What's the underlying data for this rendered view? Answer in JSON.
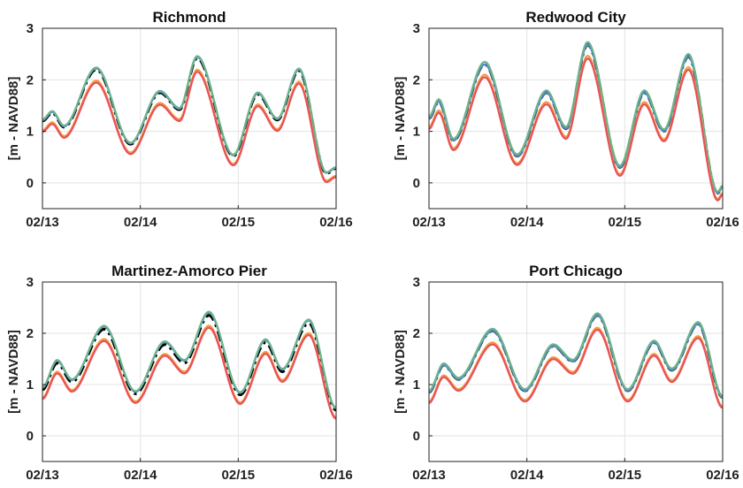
{
  "figure": {
    "background": "#ffffff",
    "x_ticks": [
      "02/13",
      "02/14",
      "02/15",
      "02/16"
    ],
    "y_ticks": [
      0,
      1,
      2,
      3
    ],
    "ylim": [
      -0.5,
      3
    ],
    "series_colors": {
      "black_dashdot": "#000000",
      "blue": "#4f86c6",
      "green": "#6db38a",
      "orange": "#f29a3c",
      "red": "#e8505b"
    }
  },
  "chart_data": [
    {
      "type": "line",
      "title": "Richmond",
      "ylabel": "[m - NAVD88]",
      "xlim": [
        0,
        3
      ],
      "ylim": [
        -0.5,
        3
      ],
      "x_ticks": [
        "02/13",
        "02/14",
        "02/15",
        "02/16"
      ],
      "grid": true,
      "tide": {
        "offsetHigh": 0.0,
        "offsetLow": 0.0,
        "pts": [
          [
            0,
            1.2
          ],
          [
            0.1,
            1.36
          ],
          [
            0.22,
            1.08
          ],
          [
            0.55,
            2.2
          ],
          [
            0.9,
            0.75
          ],
          [
            1.2,
            1.75
          ],
          [
            1.4,
            1.42
          ],
          [
            1.58,
            2.42
          ],
          [
            1.95,
            0.52
          ],
          [
            2.2,
            1.72
          ],
          [
            2.4,
            1.22
          ],
          [
            2.62,
            2.18
          ],
          [
            2.9,
            0.18
          ],
          [
            3,
            0.28
          ]
        ]
      },
      "series": [
        {
          "color": "#000000",
          "values_shift": 0.0,
          "style": "dashdot"
        },
        {
          "color": "#4f86c6",
          "values_shift": 0.02
        },
        {
          "color": "#6db38a",
          "values_shift": 0.04
        },
        {
          "color": "#f29a3c",
          "values_shift": -0.22
        },
        {
          "color": "#e8505b",
          "values_shift": -0.26
        }
      ]
    },
    {
      "type": "line",
      "title": "Redwood City",
      "ylabel": "",
      "xlim": [
        0,
        3
      ],
      "ylim": [
        -0.5,
        3
      ],
      "x_ticks": [
        "02/13",
        "02/14",
        "02/15",
        "02/16"
      ],
      "grid": true,
      "tide": {
        "pts": [
          [
            0,
            1.25
          ],
          [
            0.1,
            1.58
          ],
          [
            0.25,
            0.82
          ],
          [
            0.57,
            2.3
          ],
          [
            0.9,
            0.52
          ],
          [
            1.2,
            1.75
          ],
          [
            1.4,
            1.05
          ],
          [
            1.62,
            2.68
          ],
          [
            1.95,
            0.3
          ],
          [
            2.2,
            1.75
          ],
          [
            2.4,
            1.0
          ],
          [
            2.65,
            2.45
          ],
          [
            2.95,
            -0.2
          ],
          [
            3,
            -0.08
          ]
        ]
      },
      "series": [
        {
          "color": "#000000",
          "values_shift": 0.0,
          "style": "dashdot"
        },
        {
          "color": "#4f86c6",
          "values_shift": 0.0
        },
        {
          "color": "#6db38a",
          "values_shift": 0.05
        },
        {
          "color": "#f29a3c",
          "values_shift": -0.2
        },
        {
          "color": "#e8505b",
          "values_shift": -0.25
        }
      ]
    },
    {
      "type": "line",
      "title": "Martinez-Amorco Pier",
      "ylabel": "[m - NAVD88]",
      "xlim": [
        0,
        3
      ],
      "ylim": [
        -0.5,
        3
      ],
      "x_ticks": [
        "02/13",
        "02/14",
        "02/15",
        "02/16"
      ],
      "grid": true,
      "tide": {
        "pts": [
          [
            0,
            0.9
          ],
          [
            0.15,
            1.42
          ],
          [
            0.3,
            1.05
          ],
          [
            0.63,
            2.08
          ],
          [
            0.95,
            0.82
          ],
          [
            1.25,
            1.78
          ],
          [
            1.45,
            1.42
          ],
          [
            1.7,
            2.35
          ],
          [
            2.02,
            0.8
          ],
          [
            2.28,
            1.82
          ],
          [
            2.45,
            1.25
          ],
          [
            2.72,
            2.2
          ],
          [
            3,
            0.5
          ]
        ]
      },
      "series": [
        {
          "color": "#000000",
          "values_shift": 0.0,
          "style": "dashdot"
        },
        {
          "color": "#4f86c6",
          "values_shift": 0.05
        },
        {
          "color": "#6db38a",
          "values_shift": 0.07
        },
        {
          "color": "#f29a3c",
          "values_shift": -0.2
        },
        {
          "color": "#e8505b",
          "values_shift": -0.24
        }
      ]
    },
    {
      "type": "line",
      "title": "Port Chicago",
      "ylabel": "[m - NAVD88]",
      "xlim": [
        0,
        3
      ],
      "ylim": [
        -0.5,
        3
      ],
      "x_ticks": [
        "02/13",
        "02/14",
        "02/15",
        "02/16"
      ],
      "grid": true,
      "tide": {
        "pts": [
          [
            0,
            0.85
          ],
          [
            0.15,
            1.38
          ],
          [
            0.3,
            1.1
          ],
          [
            0.65,
            2.05
          ],
          [
            0.98,
            0.88
          ],
          [
            1.27,
            1.75
          ],
          [
            1.47,
            1.45
          ],
          [
            1.72,
            2.35
          ],
          [
            2.03,
            0.88
          ],
          [
            2.3,
            1.82
          ],
          [
            2.48,
            1.28
          ],
          [
            2.75,
            2.18
          ],
          [
            3,
            0.75
          ]
        ]
      },
      "series": [
        {
          "color": "#000000",
          "values_shift": 0.0,
          "style": "dashdot"
        },
        {
          "color": "#4f86c6",
          "values_shift": 0.0
        },
        {
          "color": "#6db38a",
          "values_shift": 0.04
        },
        {
          "color": "#f29a3c",
          "values_shift": -0.24
        },
        {
          "color": "#e8505b",
          "values_shift": -0.28
        }
      ]
    }
  ]
}
